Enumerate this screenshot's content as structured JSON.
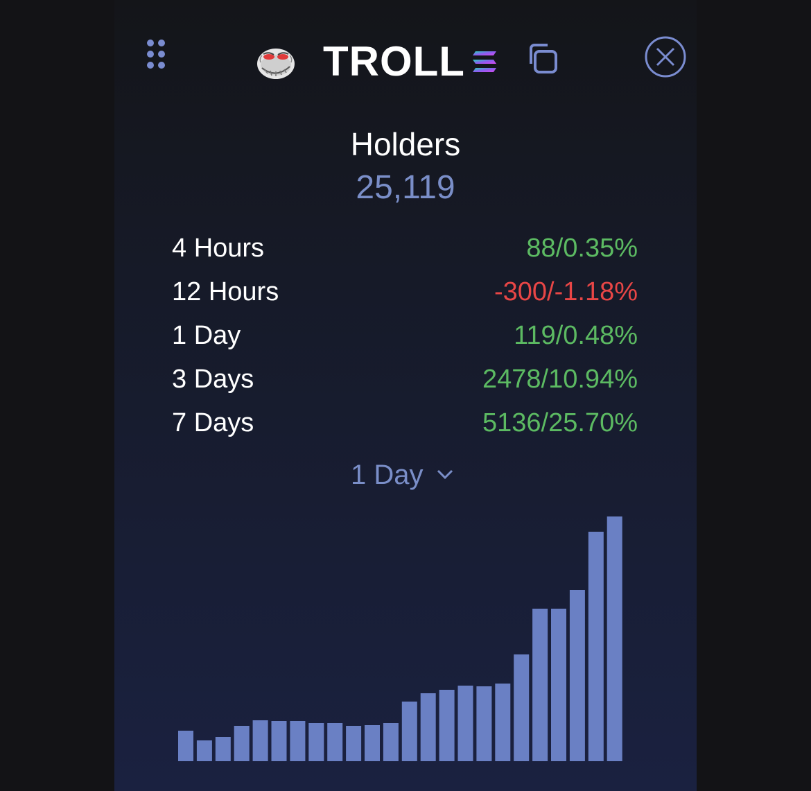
{
  "header": {
    "token_name": "TROLL",
    "icons": [
      "grip-icon",
      "troll-face-avatar",
      "solana-icon",
      "copy-icon",
      "close-icon"
    ]
  },
  "holders": {
    "label": "Holders",
    "value": "25,119"
  },
  "stats": [
    {
      "label": "4 Hours",
      "value": "88/0.35%",
      "trend": "positive"
    },
    {
      "label": "12 Hours",
      "value": "-300/-1.18%",
      "trend": "negative"
    },
    {
      "label": "1 Day",
      "value": "119/0.48%",
      "trend": "positive"
    },
    {
      "label": "3 Days",
      "value": "2478/10.94%",
      "trend": "positive"
    },
    {
      "label": "7 Days",
      "value": "5136/25.70%",
      "trend": "positive"
    }
  ],
  "period_selector": {
    "selected": "1 Day"
  },
  "colors": {
    "positive": "#5cba62",
    "negative": "#e84646",
    "accent": "#7a8ec8",
    "bar": "#6a80c4"
  },
  "chart_data": {
    "type": "bar",
    "values": [
      44,
      30,
      35,
      51,
      59,
      58,
      58,
      55,
      55,
      51,
      52,
      55,
      86,
      98,
      103,
      109,
      108,
      112,
      154,
      220,
      220,
      247,
      331,
      353
    ],
    "ylim": [
      0,
      360
    ],
    "grid": false,
    "title": "",
    "xlabel": "",
    "ylabel": ""
  }
}
